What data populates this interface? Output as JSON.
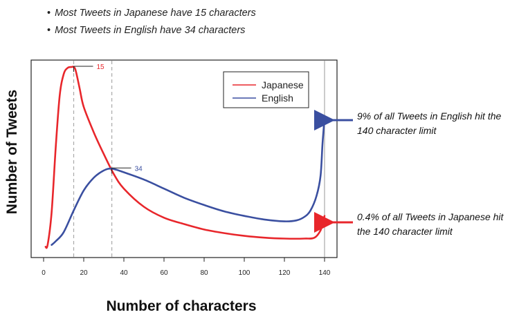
{
  "notes": {
    "japanese": "Most Tweets in Japanese have 15 characters",
    "english": "Most Tweets in English have 34 characters"
  },
  "annotations": {
    "english": "9% of all Tweets in English hit the 140 character limit",
    "japanese": "0.4% of all Tweets in Japanese hit the 140 character limit"
  },
  "colors": {
    "japanese": "#e8262b",
    "english": "#3a4fa0",
    "reference_line": "#a9a9a9",
    "axis": "#222222"
  },
  "chart_data": {
    "type": "line",
    "title": "",
    "xlabel": "Number of characters",
    "ylabel": "Number of Tweets",
    "xlim": [
      0,
      142
    ],
    "ylim": [
      0,
      100
    ],
    "x_ticks": [
      0,
      20,
      40,
      60,
      80,
      100,
      120,
      140
    ],
    "y_ticks_visible": false,
    "grid": false,
    "legend_position": "top-right",
    "peak_labels": [
      {
        "series": "Japanese",
        "x": 15,
        "y": 100,
        "label": "15"
      },
      {
        "series": "English",
        "x": 34,
        "y": 44,
        "label": "34"
      }
    ],
    "series": [
      {
        "name": "Japanese",
        "color": "#e8262b",
        "x": [
          1,
          2,
          4,
          6,
          8,
          10,
          12,
          14,
          15,
          16,
          18,
          20,
          25,
          30,
          35,
          40,
          50,
          60,
          70,
          80,
          90,
          100,
          110,
          120,
          130,
          135,
          138,
          139,
          140
        ],
        "y": [
          1,
          2,
          20,
          55,
          84,
          96,
          99.5,
          100,
          100,
          98,
          88,
          78,
          64,
          52,
          41,
          33,
          23,
          17,
          13.5,
          10.5,
          8.5,
          7,
          6,
          5.5,
          5.5,
          6,
          10,
          14,
          18
        ]
      },
      {
        "name": "English",
        "color": "#3a4fa0",
        "x": [
          4,
          6,
          10,
          15,
          20,
          25,
          30,
          34,
          40,
          50,
          60,
          70,
          80,
          90,
          100,
          110,
          120,
          126,
          130,
          133,
          136,
          138,
          139,
          140
        ],
        "y": [
          2,
          4,
          9,
          21,
          32,
          39,
          43,
          44,
          42,
          38,
          33,
          28,
          24,
          20.5,
          18,
          16,
          15,
          15.5,
          17.5,
          21,
          29,
          40,
          58,
          72
        ]
      }
    ],
    "reference_lines_x": [
      15,
      34,
      140
    ]
  }
}
